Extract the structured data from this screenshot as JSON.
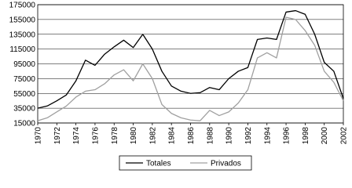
{
  "chart_data": {
    "type": "line",
    "x": [
      1970,
      1971,
      1972,
      1973,
      1974,
      1975,
      1976,
      1977,
      1978,
      1979,
      1980,
      1981,
      1982,
      1983,
      1984,
      1985,
      1986,
      1987,
      1988,
      1989,
      1990,
      1991,
      1992,
      1993,
      1994,
      1995,
      1996,
      1997,
      1998,
      1999,
      2000,
      2001,
      2002
    ],
    "series": [
      {
        "name": "Totales",
        "color": "#000000",
        "values": [
          35000,
          38000,
          45000,
          53000,
          72000,
          100000,
          93000,
          108000,
          118000,
          127000,
          117000,
          135000,
          115000,
          85000,
          65000,
          58000,
          55000,
          56000,
          63000,
          60000,
          75000,
          85000,
          90000,
          128000,
          130000,
          128000,
          165000,
          167000,
          162000,
          135000,
          97000,
          85000,
          48000
        ]
      },
      {
        "name": "Privados",
        "color": "#a0a0a0",
        "values": [
          18000,
          22000,
          30000,
          38000,
          50000,
          58000,
          60000,
          68000,
          80000,
          87000,
          72000,
          95000,
          75000,
          40000,
          28000,
          22000,
          19000,
          18000,
          32000,
          25000,
          30000,
          42000,
          60000,
          103000,
          110000,
          103000,
          158000,
          155000,
          140000,
          120000,
          85000,
          70000,
          45000
        ]
      }
    ],
    "xlim": [
      1970,
      2002
    ],
    "xticks": [
      1970,
      1972,
      1974,
      1976,
      1978,
      1980,
      1982,
      1984,
      1986,
      1988,
      1990,
      1992,
      1994,
      1996,
      1998,
      2000,
      2002
    ],
    "ylim": [
      15000,
      175000
    ],
    "yticks": [
      15000,
      35000,
      55000,
      75000,
      95000,
      115000,
      135000,
      155000,
      175000
    ],
    "grid": true,
    "legend": "bottom"
  }
}
